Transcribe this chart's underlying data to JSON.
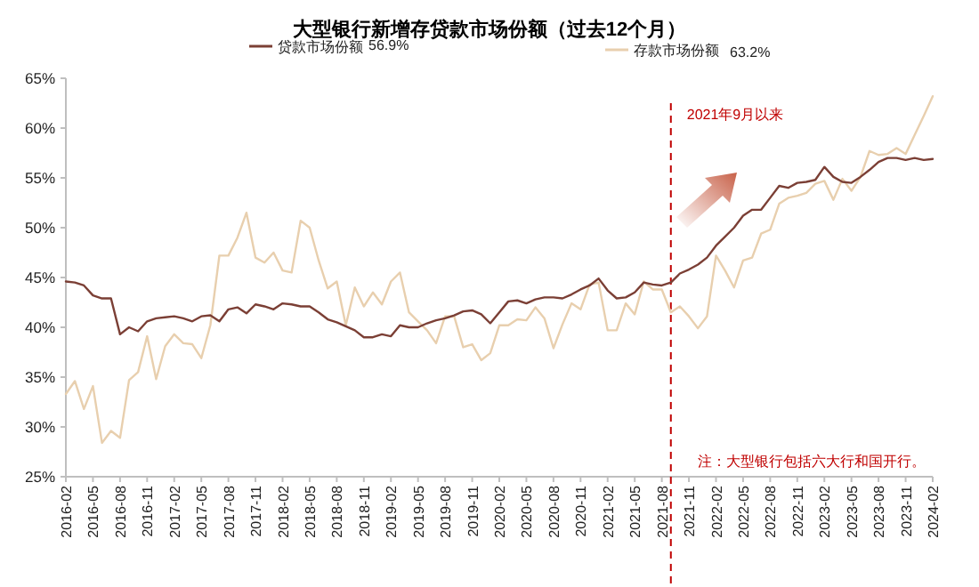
{
  "chart_data": {
    "type": "line",
    "title": "大型银行新增存贷款市场份额（过去12个月）",
    "x": [
      "2016-02",
      "2016-03",
      "2016-04",
      "2016-05",
      "2016-06",
      "2016-07",
      "2016-08",
      "2016-09",
      "2016-10",
      "2016-11",
      "2016-12",
      "2017-01",
      "2017-02",
      "2017-03",
      "2017-04",
      "2017-05",
      "2017-06",
      "2017-07",
      "2017-08",
      "2017-09",
      "2017-10",
      "2017-11",
      "2017-12",
      "2018-01",
      "2018-02",
      "2018-03",
      "2018-04",
      "2018-05",
      "2018-06",
      "2018-07",
      "2018-08",
      "2018-09",
      "2018-10",
      "2018-11",
      "2018-12",
      "2019-01",
      "2019-02",
      "2019-03",
      "2019-04",
      "2019-05",
      "2019-06",
      "2019-07",
      "2019-08",
      "2019-09",
      "2019-10",
      "2019-11",
      "2019-12",
      "2020-01",
      "2020-02",
      "2020-03",
      "2020-04",
      "2020-05",
      "2020-06",
      "2020-07",
      "2020-08",
      "2020-09",
      "2020-10",
      "2020-11",
      "2020-12",
      "2021-01",
      "2021-02",
      "2021-03",
      "2021-04",
      "2021-05",
      "2021-06",
      "2021-07",
      "2021-08",
      "2021-09",
      "2021-10",
      "2021-11",
      "2021-12",
      "2022-01",
      "2022-02",
      "2022-03",
      "2022-04",
      "2022-05",
      "2022-06",
      "2022-07",
      "2022-08",
      "2022-09",
      "2022-10",
      "2022-11",
      "2022-12",
      "2023-01",
      "2023-02",
      "2023-03",
      "2023-04",
      "2023-05",
      "2023-06",
      "2023-07",
      "2023-08",
      "2023-09",
      "2023-10",
      "2023-11",
      "2023-12",
      "2024-01",
      "2024-02"
    ],
    "series": [
      {
        "name": "贷款市场份额",
        "color": "#7b3f35",
        "values": [
          44.6,
          44.5,
          44.2,
          43.2,
          42.9,
          42.9,
          39.3,
          40.0,
          39.6,
          40.6,
          40.9,
          41.0,
          41.1,
          40.9,
          40.6,
          41.1,
          41.2,
          40.6,
          41.8,
          42.0,
          41.4,
          42.3,
          42.1,
          41.8,
          42.4,
          42.3,
          42.1,
          42.1,
          41.5,
          40.8,
          40.5,
          40.1,
          39.7,
          39.0,
          39.0,
          39.3,
          39.1,
          40.2,
          40.0,
          40.0,
          40.4,
          40.7,
          40.9,
          41.2,
          41.6,
          41.7,
          41.3,
          40.4,
          41.5,
          42.6,
          42.7,
          42.4,
          42.8,
          43.0,
          43.0,
          42.9,
          43.3,
          43.8,
          44.2,
          44.9,
          43.7,
          42.9,
          43.0,
          43.5,
          44.5,
          44.3,
          44.2,
          44.5,
          45.4,
          45.8,
          46.3,
          47.0,
          48.2,
          49.1,
          50.0,
          51.2,
          51.8,
          51.8,
          53.0,
          54.2,
          54.0,
          54.5,
          54.6,
          54.8,
          56.1,
          55.1,
          54.6,
          54.5,
          55.1,
          55.8,
          56.6,
          57.0,
          57.0,
          56.8,
          57.0,
          56.8,
          56.9
        ]
      },
      {
        "name": "存款市场份额",
        "color": "#e8cfae",
        "values": [
          33.3,
          34.6,
          31.8,
          34.1,
          28.4,
          29.6,
          28.9,
          34.7,
          35.5,
          39.1,
          34.8,
          38.1,
          39.3,
          38.4,
          38.3,
          36.9,
          40.2,
          47.2,
          47.2,
          49.0,
          51.5,
          47.0,
          46.5,
          47.5,
          45.7,
          45.5,
          50.7,
          50.0,
          46.7,
          43.9,
          44.6,
          40.2,
          44.0,
          42.1,
          43.5,
          42.3,
          44.6,
          45.5,
          41.5,
          40.6,
          39.7,
          38.4,
          41.1,
          41.1,
          38.0,
          38.3,
          36.7,
          37.4,
          40.2,
          40.2,
          40.8,
          40.7,
          42.0,
          40.9,
          37.9,
          40.3,
          42.4,
          41.8,
          44.3,
          44.5,
          39.7,
          39.7,
          42.4,
          41.3,
          44.6,
          43.8,
          43.8,
          41.5,
          42.1,
          41.1,
          39.9,
          41.1,
          47.2,
          45.7,
          44.0,
          46.7,
          47.0,
          49.4,
          49.8,
          52.4,
          53.0,
          53.2,
          53.5,
          54.4,
          54.7,
          52.8,
          54.9,
          53.7,
          55.1,
          57.7,
          57.3,
          57.4,
          58.0,
          57.4,
          59.3,
          61.2,
          63.2
        ]
      }
    ],
    "xlim": [
      "2016-02",
      "2024-02"
    ],
    "xticks": [
      {
        "value": "2016-02",
        "label": "2016-02"
      },
      {
        "value": "2016-05",
        "label": "2016-05"
      },
      {
        "value": "2016-08",
        "label": "2016-08"
      },
      {
        "value": "2016-11",
        "label": "2016-11"
      },
      {
        "value": "2017-02",
        "label": "2017-02"
      },
      {
        "value": "2017-05",
        "label": "2017-05"
      },
      {
        "value": "2017-08",
        "label": "2017-08"
      },
      {
        "value": "2017-11",
        "label": "2017-11"
      },
      {
        "value": "2018-02",
        "label": "2018-02"
      },
      {
        "value": "2018-05",
        "label": "2018-05"
      },
      {
        "value": "2018-08",
        "label": "2018-08"
      },
      {
        "value": "2018-11",
        "label": "2018-11"
      },
      {
        "value": "2019-02",
        "label": "2019-02"
      },
      {
        "value": "2019-05",
        "label": "2019-05"
      },
      {
        "value": "2019-08",
        "label": "2019-08"
      },
      {
        "value": "2019-11",
        "label": "2019-11"
      },
      {
        "value": "2020-02",
        "label": "2020-02"
      },
      {
        "value": "2020-05",
        "label": "2020-05"
      },
      {
        "value": "2020-08",
        "label": "2020-08"
      },
      {
        "value": "2020-11",
        "label": "2020-11"
      },
      {
        "value": "2021-02",
        "label": "2021-02"
      },
      {
        "value": "2021-05",
        "label": "2021-05"
      },
      {
        "value": "2021-08",
        "label": "2021-08"
      },
      {
        "value": "2021-11",
        "label": "2021-11"
      },
      {
        "value": "2022-02",
        "label": "2022-02"
      },
      {
        "value": "2022-05",
        "label": "2022-05"
      },
      {
        "value": "2022-08",
        "label": "2022-08"
      },
      {
        "value": "2022-11",
        "label": "2022-11"
      },
      {
        "value": "2023-02",
        "label": "2023-02"
      },
      {
        "value": "2023-05",
        "label": "2023-05"
      },
      {
        "value": "2023-08",
        "label": "2023-08"
      },
      {
        "value": "2023-11",
        "label": "2023-11"
      },
      {
        "value": "2024-02",
        "label": "2024-02"
      }
    ],
    "ylim": [
      25,
      65
    ],
    "yticks": [
      {
        "value": 25,
        "label": "25%"
      },
      {
        "value": 30,
        "label": "30%"
      },
      {
        "value": 35,
        "label": "35%"
      },
      {
        "value": 40,
        "label": "40%"
      },
      {
        "value": 45,
        "label": "45%"
      },
      {
        "value": 50,
        "label": "50%"
      },
      {
        "value": 55,
        "label": "55%"
      },
      {
        "value": 60,
        "label": "60%"
      },
      {
        "value": 65,
        "label": "65%"
      }
    ],
    "ref_lines": [
      {
        "axis": "x",
        "value": "2021-09",
        "label": "2021年9月以来",
        "color": "#c00000",
        "line_style": "dashed"
      }
    ],
    "annotations": [
      "注：大型银行包括六大行和国开行。",
      "56.9%",
      "63.2%"
    ],
    "legend": "top",
    "grid": false,
    "marker": "none"
  }
}
